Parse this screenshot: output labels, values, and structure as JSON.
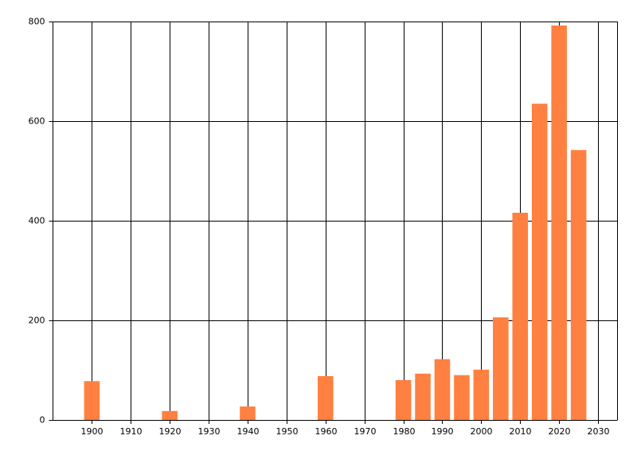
{
  "chart_data": {
    "type": "bar",
    "x": [
      1900,
      1920,
      1940,
      1960,
      1980,
      1985,
      1990,
      1995,
      2000,
      2005,
      2010,
      2015,
      2020,
      2025
    ],
    "values": [
      78,
      18,
      27,
      88,
      80,
      93,
      122,
      90,
      101,
      206,
      416,
      635,
      792,
      542
    ],
    "color": "#ff8040",
    "xlim": [
      1890,
      2035
    ],
    "xticks": [
      1900,
      1910,
      1920,
      1930,
      1940,
      1950,
      1960,
      1970,
      1980,
      1990,
      2000,
      2010,
      2020,
      2030
    ],
    "ylim": [
      0,
      800
    ],
    "yticks": [
      0,
      200,
      400,
      600,
      800
    ],
    "grid": true
  }
}
